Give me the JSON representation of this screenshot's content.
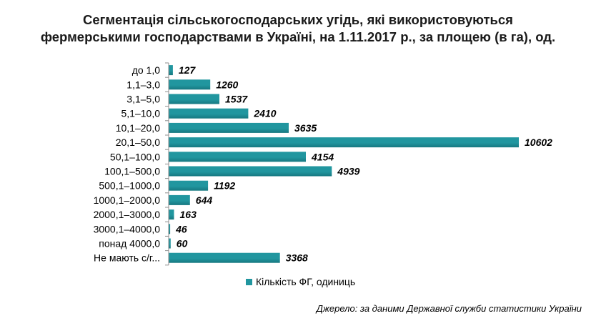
{
  "colors": {
    "bar": "#21969F",
    "bar_dark": "#177880",
    "axis": "#8c8c8c"
  },
  "chart_data": {
    "type": "bar",
    "orientation": "horizontal",
    "title_line1": "Сегментація сільськогосподарських угідь, які використовуються",
    "title_line2": "фермерськими господарствами в Україні, на 1.11.2017 р., за площею (в га), од.",
    "categories": [
      "до 1,0",
      "1,1–3,0",
      "3,1–5,0",
      "5,1–10,0",
      "10,1–20,0",
      "20,1–50,0",
      "50,1–100,0",
      "100,1–500,0",
      "500,1–1000,0",
      "1000,1–2000,0",
      "2000,1–3000,0",
      "3000,1–4000,0",
      "понад 4000,0",
      "Не мають с/г..."
    ],
    "series": [
      {
        "name": "Кількість ФГ, одиниць",
        "values": [
          127,
          1260,
          1537,
          2410,
          3635,
          10602,
          4154,
          4939,
          1192,
          644,
          163,
          46,
          60,
          3368
        ]
      }
    ],
    "legend_position": "bottom",
    "grid": false,
    "source_note": "Джерело: за даними Державної служби статистики України"
  }
}
